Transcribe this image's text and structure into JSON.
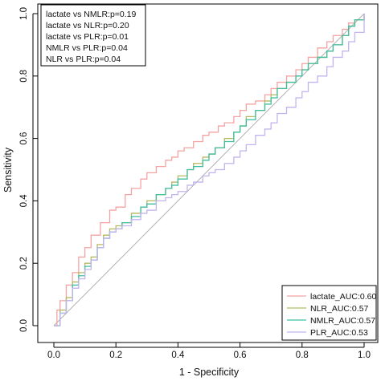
{
  "chart_data": {
    "type": "line",
    "title": "",
    "xlabel": "1 - Specificity",
    "ylabel": "Sensitivity",
    "xlim": [
      0,
      1
    ],
    "ylim": [
      0,
      1
    ],
    "xticks": [
      "0.0",
      "0.2",
      "0.4",
      "0.6",
      "0.8",
      "1.0"
    ],
    "yticks": [
      "0.0",
      "0.2",
      "0.4",
      "0.6",
      "0.8",
      "1.0"
    ],
    "grid": false,
    "legend_position": "bottom-right",
    "annotations": [
      "lactate vs NMLR:p=0.19",
      "lactate vs NLR:p=0.20",
      "lactate vs PLR:p=0.01",
      "NMLR vs PLR:p=0.04",
      "NLR vs PLR:p=0.04"
    ],
    "reference_line": {
      "x": [
        0,
        1
      ],
      "y": [
        0,
        1
      ],
      "color": "#b0b0b0"
    },
    "series": [
      {
        "name": "lactate_AUC:0.60",
        "color": "#f4a3a3",
        "x": [
          0,
          0.01,
          0.02,
          0.04,
          0.06,
          0.08,
          0.1,
          0.12,
          0.15,
          0.18,
          0.2,
          0.23,
          0.25,
          0.28,
          0.3,
          0.33,
          0.36,
          0.38,
          0.4,
          0.42,
          0.45,
          0.48,
          0.5,
          0.53,
          0.55,
          0.58,
          0.6,
          0.62,
          0.65,
          0.68,
          0.7,
          0.72,
          0.75,
          0.78,
          0.8,
          0.82,
          0.85,
          0.88,
          0.9,
          0.93,
          0.95,
          0.97,
          1.0
        ],
        "y": [
          0,
          0.05,
          0.08,
          0.13,
          0.17,
          0.22,
          0.25,
          0.29,
          0.33,
          0.37,
          0.38,
          0.42,
          0.44,
          0.47,
          0.49,
          0.51,
          0.53,
          0.54,
          0.56,
          0.57,
          0.59,
          0.61,
          0.62,
          0.64,
          0.65,
          0.67,
          0.69,
          0.71,
          0.72,
          0.74,
          0.76,
          0.78,
          0.8,
          0.82,
          0.84,
          0.86,
          0.89,
          0.91,
          0.93,
          0.95,
          0.97,
          0.98,
          1.0
        ]
      },
      {
        "name": "NLR_AUC:0.57",
        "color": "#b5b860",
        "x": [
          0,
          0.02,
          0.04,
          0.06,
          0.08,
          0.1,
          0.12,
          0.14,
          0.16,
          0.18,
          0.2,
          0.22,
          0.25,
          0.28,
          0.3,
          0.33,
          0.36,
          0.38,
          0.4,
          0.43,
          0.45,
          0.48,
          0.5,
          0.52,
          0.55,
          0.58,
          0.6,
          0.62,
          0.65,
          0.68,
          0.7,
          0.72,
          0.75,
          0.78,
          0.8,
          0.82,
          0.85,
          0.88,
          0.9,
          0.93,
          0.95,
          0.97,
          1.0
        ],
        "y": [
          0,
          0.05,
          0.09,
          0.14,
          0.17,
          0.2,
          0.22,
          0.26,
          0.29,
          0.31,
          0.32,
          0.33,
          0.36,
          0.38,
          0.4,
          0.42,
          0.44,
          0.46,
          0.48,
          0.5,
          0.52,
          0.54,
          0.55,
          0.57,
          0.6,
          0.62,
          0.64,
          0.67,
          0.69,
          0.72,
          0.74,
          0.76,
          0.78,
          0.8,
          0.82,
          0.84,
          0.86,
          0.88,
          0.9,
          0.93,
          0.96,
          0.98,
          1.0
        ]
      },
      {
        "name": "NMLR_AUC:0.57",
        "color": "#3fbfa0",
        "x": [
          0,
          0.02,
          0.04,
          0.06,
          0.08,
          0.1,
          0.12,
          0.14,
          0.16,
          0.18,
          0.2,
          0.22,
          0.25,
          0.28,
          0.3,
          0.33,
          0.36,
          0.38,
          0.4,
          0.43,
          0.45,
          0.48,
          0.5,
          0.52,
          0.55,
          0.58,
          0.6,
          0.62,
          0.65,
          0.68,
          0.7,
          0.72,
          0.75,
          0.78,
          0.8,
          0.82,
          0.85,
          0.88,
          0.9,
          0.93,
          0.95,
          0.97,
          1.0
        ],
        "y": [
          0,
          0.04,
          0.08,
          0.13,
          0.16,
          0.19,
          0.21,
          0.25,
          0.28,
          0.3,
          0.31,
          0.33,
          0.35,
          0.38,
          0.39,
          0.42,
          0.44,
          0.45,
          0.47,
          0.5,
          0.51,
          0.53,
          0.55,
          0.57,
          0.59,
          0.62,
          0.64,
          0.66,
          0.69,
          0.71,
          0.73,
          0.76,
          0.78,
          0.8,
          0.82,
          0.84,
          0.86,
          0.88,
          0.9,
          0.93,
          0.96,
          0.98,
          1.0
        ]
      },
      {
        "name": "PLR_AUC:0.53",
        "color": "#c3b3ef",
        "x": [
          0,
          0.02,
          0.04,
          0.06,
          0.08,
          0.1,
          0.12,
          0.14,
          0.16,
          0.18,
          0.2,
          0.22,
          0.25,
          0.28,
          0.3,
          0.33,
          0.36,
          0.38,
          0.4,
          0.43,
          0.45,
          0.48,
          0.5,
          0.52,
          0.55,
          0.58,
          0.6,
          0.62,
          0.65,
          0.68,
          0.7,
          0.72,
          0.75,
          0.78,
          0.8,
          0.82,
          0.85,
          0.88,
          0.9,
          0.93,
          0.95,
          0.97,
          1.0
        ],
        "y": [
          0,
          0.04,
          0.08,
          0.12,
          0.15,
          0.18,
          0.21,
          0.25,
          0.28,
          0.3,
          0.31,
          0.32,
          0.34,
          0.36,
          0.37,
          0.4,
          0.41,
          0.42,
          0.43,
          0.45,
          0.46,
          0.48,
          0.49,
          0.5,
          0.52,
          0.54,
          0.56,
          0.58,
          0.61,
          0.63,
          0.65,
          0.68,
          0.7,
          0.73,
          0.75,
          0.78,
          0.8,
          0.83,
          0.86,
          0.88,
          0.91,
          0.94,
          1.0
        ]
      }
    ]
  }
}
